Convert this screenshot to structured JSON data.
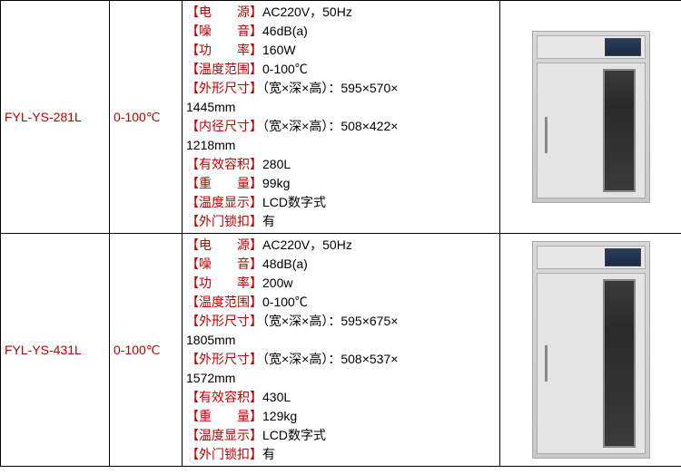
{
  "rows": [
    {
      "model": "FYL-YS-281L",
      "temp": "0-100℃",
      "fridge_class": "short",
      "specs": [
        {
          "label": "电　　源",
          "value": "AC220V，50Hz"
        },
        {
          "label": "噪　　音",
          "value": "46dB(a)"
        },
        {
          "label": "功　　率",
          "value": "160W"
        },
        {
          "label": "温度范围",
          "value": "0-100℃"
        },
        {
          "label": "外形尺寸",
          "value": "（宽×深×高）：595×570×1445mm",
          "wrap": true
        },
        {
          "label": "内径尺寸",
          "value": "（宽×深×高）：508×422×1218mm",
          "wrap": true
        },
        {
          "label": "有效容积",
          "value": "280L"
        },
        {
          "label": "重　　量",
          "value": "99kg"
        },
        {
          "label": "温度显示",
          "value": "LCD数字式"
        },
        {
          "label": "外门锁扣",
          "value": "有"
        }
      ]
    },
    {
      "model": "FYL-YS-431L",
      "temp": "0-100℃",
      "fridge_class": "tall",
      "specs": [
        {
          "label": "电　　源",
          "value": "AC220V，50Hz"
        },
        {
          "label": "噪　　音",
          "value": "48dB(a)"
        },
        {
          "label": "功　　率",
          "value": "200w"
        },
        {
          "label": "温度范围",
          "value": "0-100℃"
        },
        {
          "label": "外形尺寸",
          "value": "（宽×深×高）：595×675×1805mm",
          "wrap": true
        },
        {
          "label": "外形尺寸",
          "value": "（宽×深×高）：508×537×1572mm",
          "wrap": true
        },
        {
          "label": "有效容积",
          "value": "430L"
        },
        {
          "label": "重　　量",
          "value": "129kg"
        },
        {
          "label": "温度显示",
          "value": "LCD数字式"
        },
        {
          "label": "外门锁扣",
          "value": "有"
        }
      ]
    }
  ],
  "bracket_open": "【",
  "bracket_close": "】"
}
